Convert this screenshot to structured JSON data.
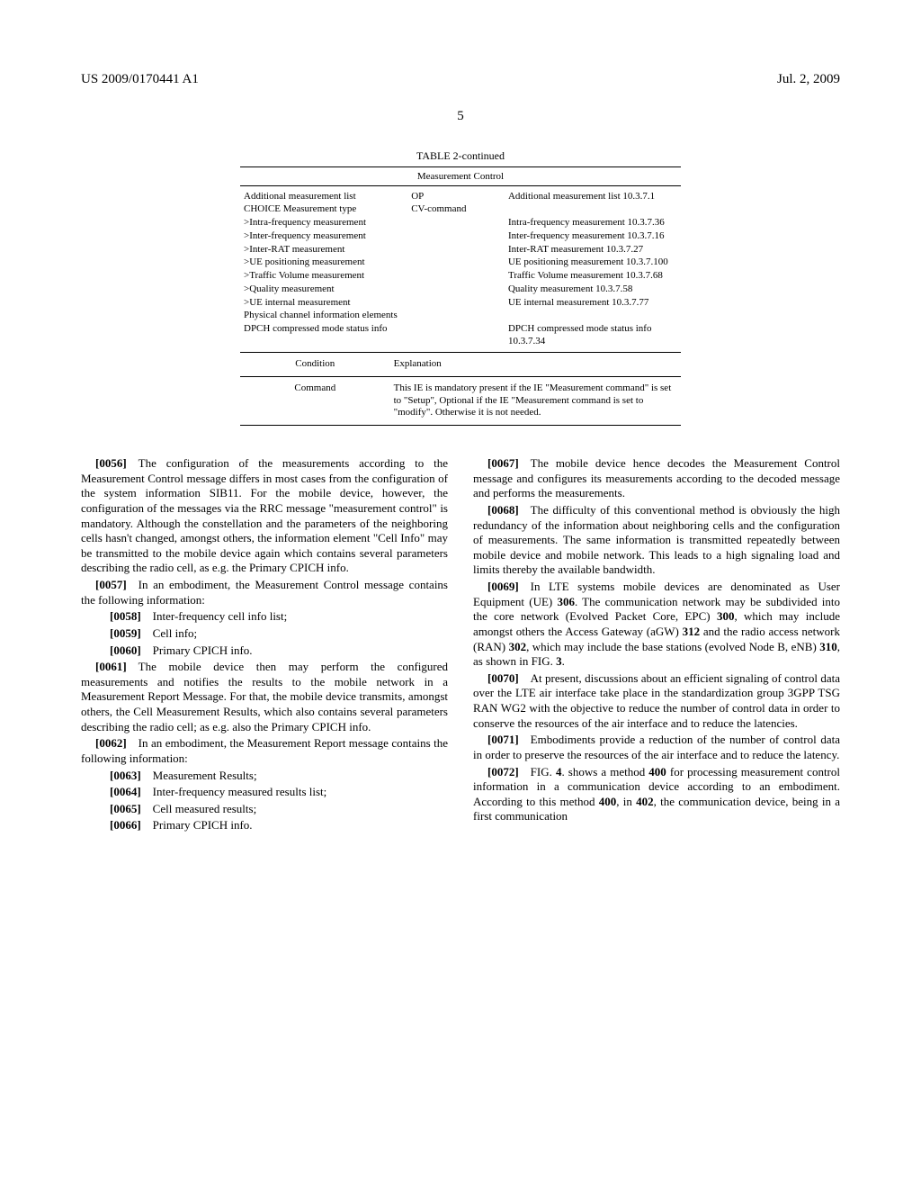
{
  "header": {
    "pub_id": "US 2009/0170441 A1",
    "date": "Jul. 2, 2009",
    "page_number": "5"
  },
  "table": {
    "title": "TABLE 2-continued",
    "subtitle": "Measurement Control",
    "rows": [
      {
        "c1": "Additional measurement list",
        "c2": "OP",
        "c3": "Additional measurement list 10.3.7.1"
      },
      {
        "c1": "CHOICE Measurement type",
        "c2": "CV-command",
        "c3": ""
      },
      {
        "c1": ">Intra-frequency measurement",
        "c2": "",
        "c3": "Intra-frequency measurement 10.3.7.36"
      },
      {
        "c1": ">Inter-frequency measurement",
        "c2": "",
        "c3": "Inter-frequency measurement 10.3.7.16"
      },
      {
        "c1": ">Inter-RAT measurement",
        "c2": "",
        "c3": "Inter-RAT measurement 10.3.7.27"
      },
      {
        "c1": ">UE positioning measurement",
        "c2": "",
        "c3": "UE positioning measurement 10.3.7.100"
      },
      {
        "c1": ">Traffic Volume measurement",
        "c2": "",
        "c3": "Traffic Volume measurement 10.3.7.68"
      },
      {
        "c1": ">Quality measurement",
        "c2": "",
        "c3": "Quality measurement 10.3.7.58"
      },
      {
        "c1": ">UE internal measurement",
        "c2": "",
        "c3": "UE internal measurement 10.3.7.77"
      },
      {
        "c1": "Physical channel information elements",
        "c2": "",
        "c3": ""
      },
      {
        "c1": "DPCH compressed mode status info",
        "c2": "",
        "c3": "DPCH compressed mode status info 10.3.7.34"
      }
    ],
    "cond_header": {
      "left": "Condition",
      "right": "Explanation"
    },
    "cond_row": {
      "left": "Command",
      "right": "This IE is mandatory present if the IE \"Measurement command\" is set to \"Setup\", Optional if the IE \"Measurement command is set to \"modify\". Otherwise it is not needed."
    }
  },
  "body": {
    "p0056": "[0056] The configuration of the measurements according to the Measurement Control message differs in most cases from the configuration of the system information SIB11. For the mobile device, however, the configuration of the messages via the RRC message \"measurement control\" is mandatory. Although the constellation and the parameters of the neighboring cells hasn't changed, amongst others, the information element \"Cell Info\" may be transmitted to the mobile device again which contains several parameters describing the radio cell, as e.g. the Primary CPICH info.",
    "p0057": "[0057] In an embodiment, the Measurement Control message contains the following information:",
    "p0058": "[0058] Inter-frequency cell info list;",
    "p0059": "[0059] Cell info;",
    "p0060": "[0060] Primary CPICH info.",
    "p0061": "[0061] The mobile device then may perform the configured measurements and notifies the results to the mobile network in a Measurement Report Message. For that, the mobile device transmits, amongst others, the Cell Measurement Results, which also contains several parameters describing the radio cell; as e.g. also the Primary CPICH info.",
    "p0062": "[0062] In an embodiment, the Measurement Report message contains the following information:",
    "p0063": "[0063] Measurement Results;",
    "p0064": "[0064] Inter-frequency measured results list;",
    "p0065": "[0065] Cell measured results;",
    "p0066": "[0066] Primary CPICH info.",
    "p0067": "[0067] The mobile device hence decodes the Measurement Control message and configures its measurements according to the decoded message and performs the measurements.",
    "p0068": "[0068] The difficulty of this conventional method is obviously the high redundancy of the information about neighboring cells and the configuration of measurements. The same information is transmitted repeatedly between mobile device and mobile network. This leads to a high signaling load and limits thereby the available bandwidth.",
    "p0069": "[0069] In LTE systems mobile devices are denominated as User Equipment (UE) 306. The communication network may be subdivided into the core network (Evolved Packet Core, EPC) 300, which may include amongst others the Access Gateway (aGW) 312 and the radio access network (RAN) 302, which may include the base stations (evolved Node B, eNB) 310, as shown in FIG. 3.",
    "p0070": "[0070] At present, discussions about an efficient signaling of control data over the LTE air interface take place in the standardization group 3GPP TSG RAN WG2 with the objective to reduce the number of control data in order to conserve the resources of the air interface and to reduce the latencies.",
    "p0071": "[0071] Embodiments provide a reduction of the number of control data in order to preserve the resources of the air interface and to reduce the latency.",
    "p0072": "[0072] FIG. 4. shows a method 400 for processing measurement control information in a communication device according to an embodiment. According to this method 400, in 402, the communication device, being in a first communication"
  }
}
